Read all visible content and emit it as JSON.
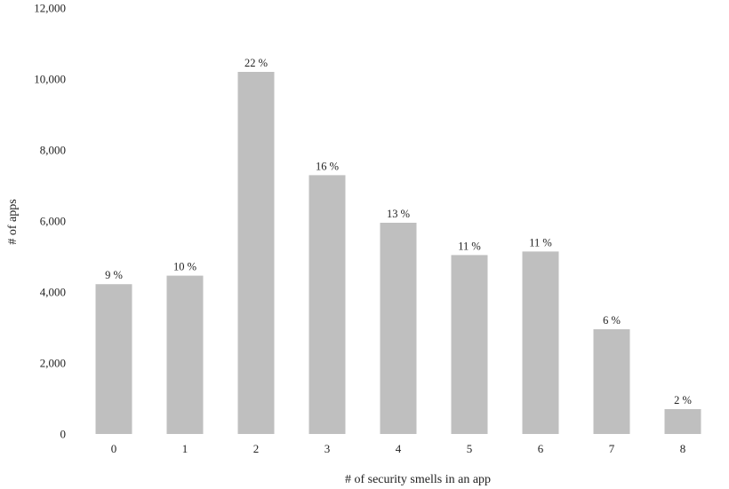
{
  "chart_data": {
    "type": "bar",
    "title": "",
    "xlabel": "# of security smells in an app",
    "ylabel": "# of apps",
    "categories": [
      "0",
      "1",
      "2",
      "3",
      "4",
      "5",
      "6",
      "7",
      "8"
    ],
    "values": [
      4220,
      4460,
      10200,
      7290,
      5950,
      5040,
      5140,
      2950,
      700
    ],
    "data_labels": [
      "9 %",
      "10 %",
      "22 %",
      "16 %",
      "13 %",
      "11 %",
      "11 %",
      "6 %",
      "2 %"
    ],
    "ylim": [
      0,
      12000
    ],
    "yticks": [
      0,
      2000,
      4000,
      6000,
      8000,
      10000,
      12000
    ],
    "ytick_labels": [
      "0",
      "2,000",
      "4,000",
      "6,000",
      "8,000",
      "10,000",
      "12,000"
    ],
    "grid": false,
    "legend": "none",
    "bar_color": "#bfbfbf"
  }
}
